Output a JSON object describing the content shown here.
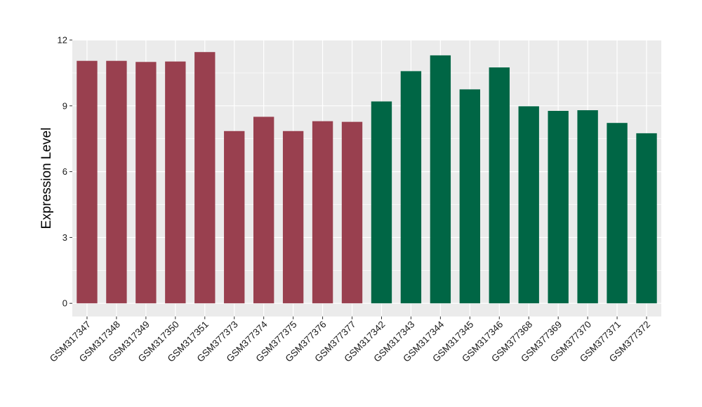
{
  "chart_data": {
    "type": "bar",
    "title": "",
    "xlabel": "",
    "ylabel": "Expression Level",
    "ylim": [
      -0.6,
      12
    ],
    "yticks": [
      0,
      3,
      6,
      9,
      12
    ],
    "grid": true,
    "colors": {
      "panel_background": "#ebebeb",
      "grid": "#ffffff",
      "group_a": "#99404f",
      "group_b": "#006645"
    },
    "categories": [
      "GSM317347",
      "GSM317348",
      "GSM317349",
      "GSM317350",
      "GSM317351",
      "GSM377373",
      "GSM377374",
      "GSM377375",
      "GSM377376",
      "GSM377377",
      "GSM317342",
      "GSM317343",
      "GSM317344",
      "GSM317345",
      "GSM317346",
      "GSM377368",
      "GSM377369",
      "GSM377370",
      "GSM377371",
      "GSM377372"
    ],
    "values": [
      11.05,
      11.05,
      11.0,
      11.02,
      11.45,
      7.85,
      8.5,
      7.85,
      8.3,
      8.27,
      9.2,
      10.58,
      11.3,
      9.75,
      10.75,
      8.98,
      8.77,
      8.8,
      8.22,
      7.75
    ],
    "bar_groups": [
      "group_a",
      "group_a",
      "group_a",
      "group_a",
      "group_a",
      "group_a",
      "group_a",
      "group_a",
      "group_a",
      "group_a",
      "group_b",
      "group_b",
      "group_b",
      "group_b",
      "group_b",
      "group_b",
      "group_b",
      "group_b",
      "group_b",
      "group_b"
    ]
  }
}
